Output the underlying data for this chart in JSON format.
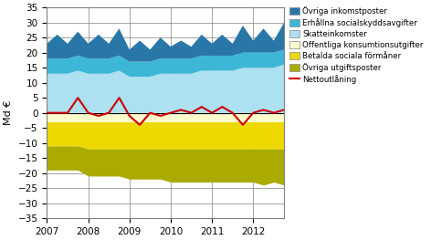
{
  "ylabel": "Md €",
  "ylim": [
    -35,
    35
  ],
  "yticks": [
    -35,
    -30,
    -25,
    -20,
    -15,
    -10,
    -5,
    0,
    5,
    10,
    15,
    20,
    25,
    30,
    35
  ],
  "colors": {
    "ovriga_inkomst": "#2977A8",
    "erh_social": "#3CB8D6",
    "skatt": "#ADE0F0",
    "offentliga": "#FDFACC",
    "betalda": "#EDD800",
    "ovriga_utgift": "#AAAA00",
    "nettoutlaning": "#CC0000"
  },
  "legend_labels": [
    "Övriga inkomstposter",
    "Erhållna socialskyddsavgifter",
    "Skatteinkomster",
    "Offentliga konsumtionsutgifter",
    "Betalda sociala förmåner",
    "Övriga utgiftsposter",
    "Nettoutlåning"
  ],
  "x_labels": [
    "2007",
    "2008",
    "2009",
    "2010",
    "2011",
    "2012"
  ],
  "xtick_pos": [
    0,
    4,
    8,
    12,
    16,
    20
  ],
  "skatt": [
    13,
    13,
    13,
    14,
    13,
    13,
    13,
    14,
    12,
    12,
    12,
    13,
    13,
    13,
    13,
    14,
    14,
    14,
    14,
    15,
    15,
    15,
    15,
    16
  ],
  "erh_social": [
    5,
    5,
    5,
    5,
    5,
    5,
    5,
    5,
    5,
    5,
    5,
    5,
    5,
    5,
    5,
    5,
    5,
    5,
    5,
    5,
    5,
    5,
    5,
    5
  ],
  "ovriga_inkomst": [
    5,
    8,
    5,
    8,
    5,
    8,
    5,
    9,
    4,
    7,
    4,
    7,
    4,
    6,
    4,
    7,
    4,
    7,
    4,
    9,
    4,
    8,
    4,
    9
  ],
  "offentliga": [
    3,
    3,
    3,
    3,
    3,
    3,
    3,
    3,
    3,
    3,
    3,
    3,
    3,
    3,
    3,
    3,
    3,
    3,
    3,
    3,
    3,
    3,
    3,
    3
  ],
  "betalda": [
    8,
    8,
    8,
    8,
    9,
    9,
    9,
    9,
    9,
    9,
    9,
    9,
    9,
    9,
    9,
    9,
    9,
    9,
    9,
    9,
    9,
    9,
    9,
    9
  ],
  "ovriga_utgift": [
    8,
    8,
    8,
    8,
    9,
    9,
    9,
    9,
    10,
    10,
    10,
    10,
    11,
    11,
    11,
    11,
    11,
    11,
    11,
    11,
    11,
    12,
    11,
    12
  ],
  "nettoutlaning": [
    0,
    0,
    0,
    5,
    0,
    -1,
    0,
    5,
    -1,
    -4,
    0,
    -1,
    0,
    1,
    0,
    2,
    0,
    2,
    0,
    -4,
    0,
    1,
    0,
    1
  ]
}
